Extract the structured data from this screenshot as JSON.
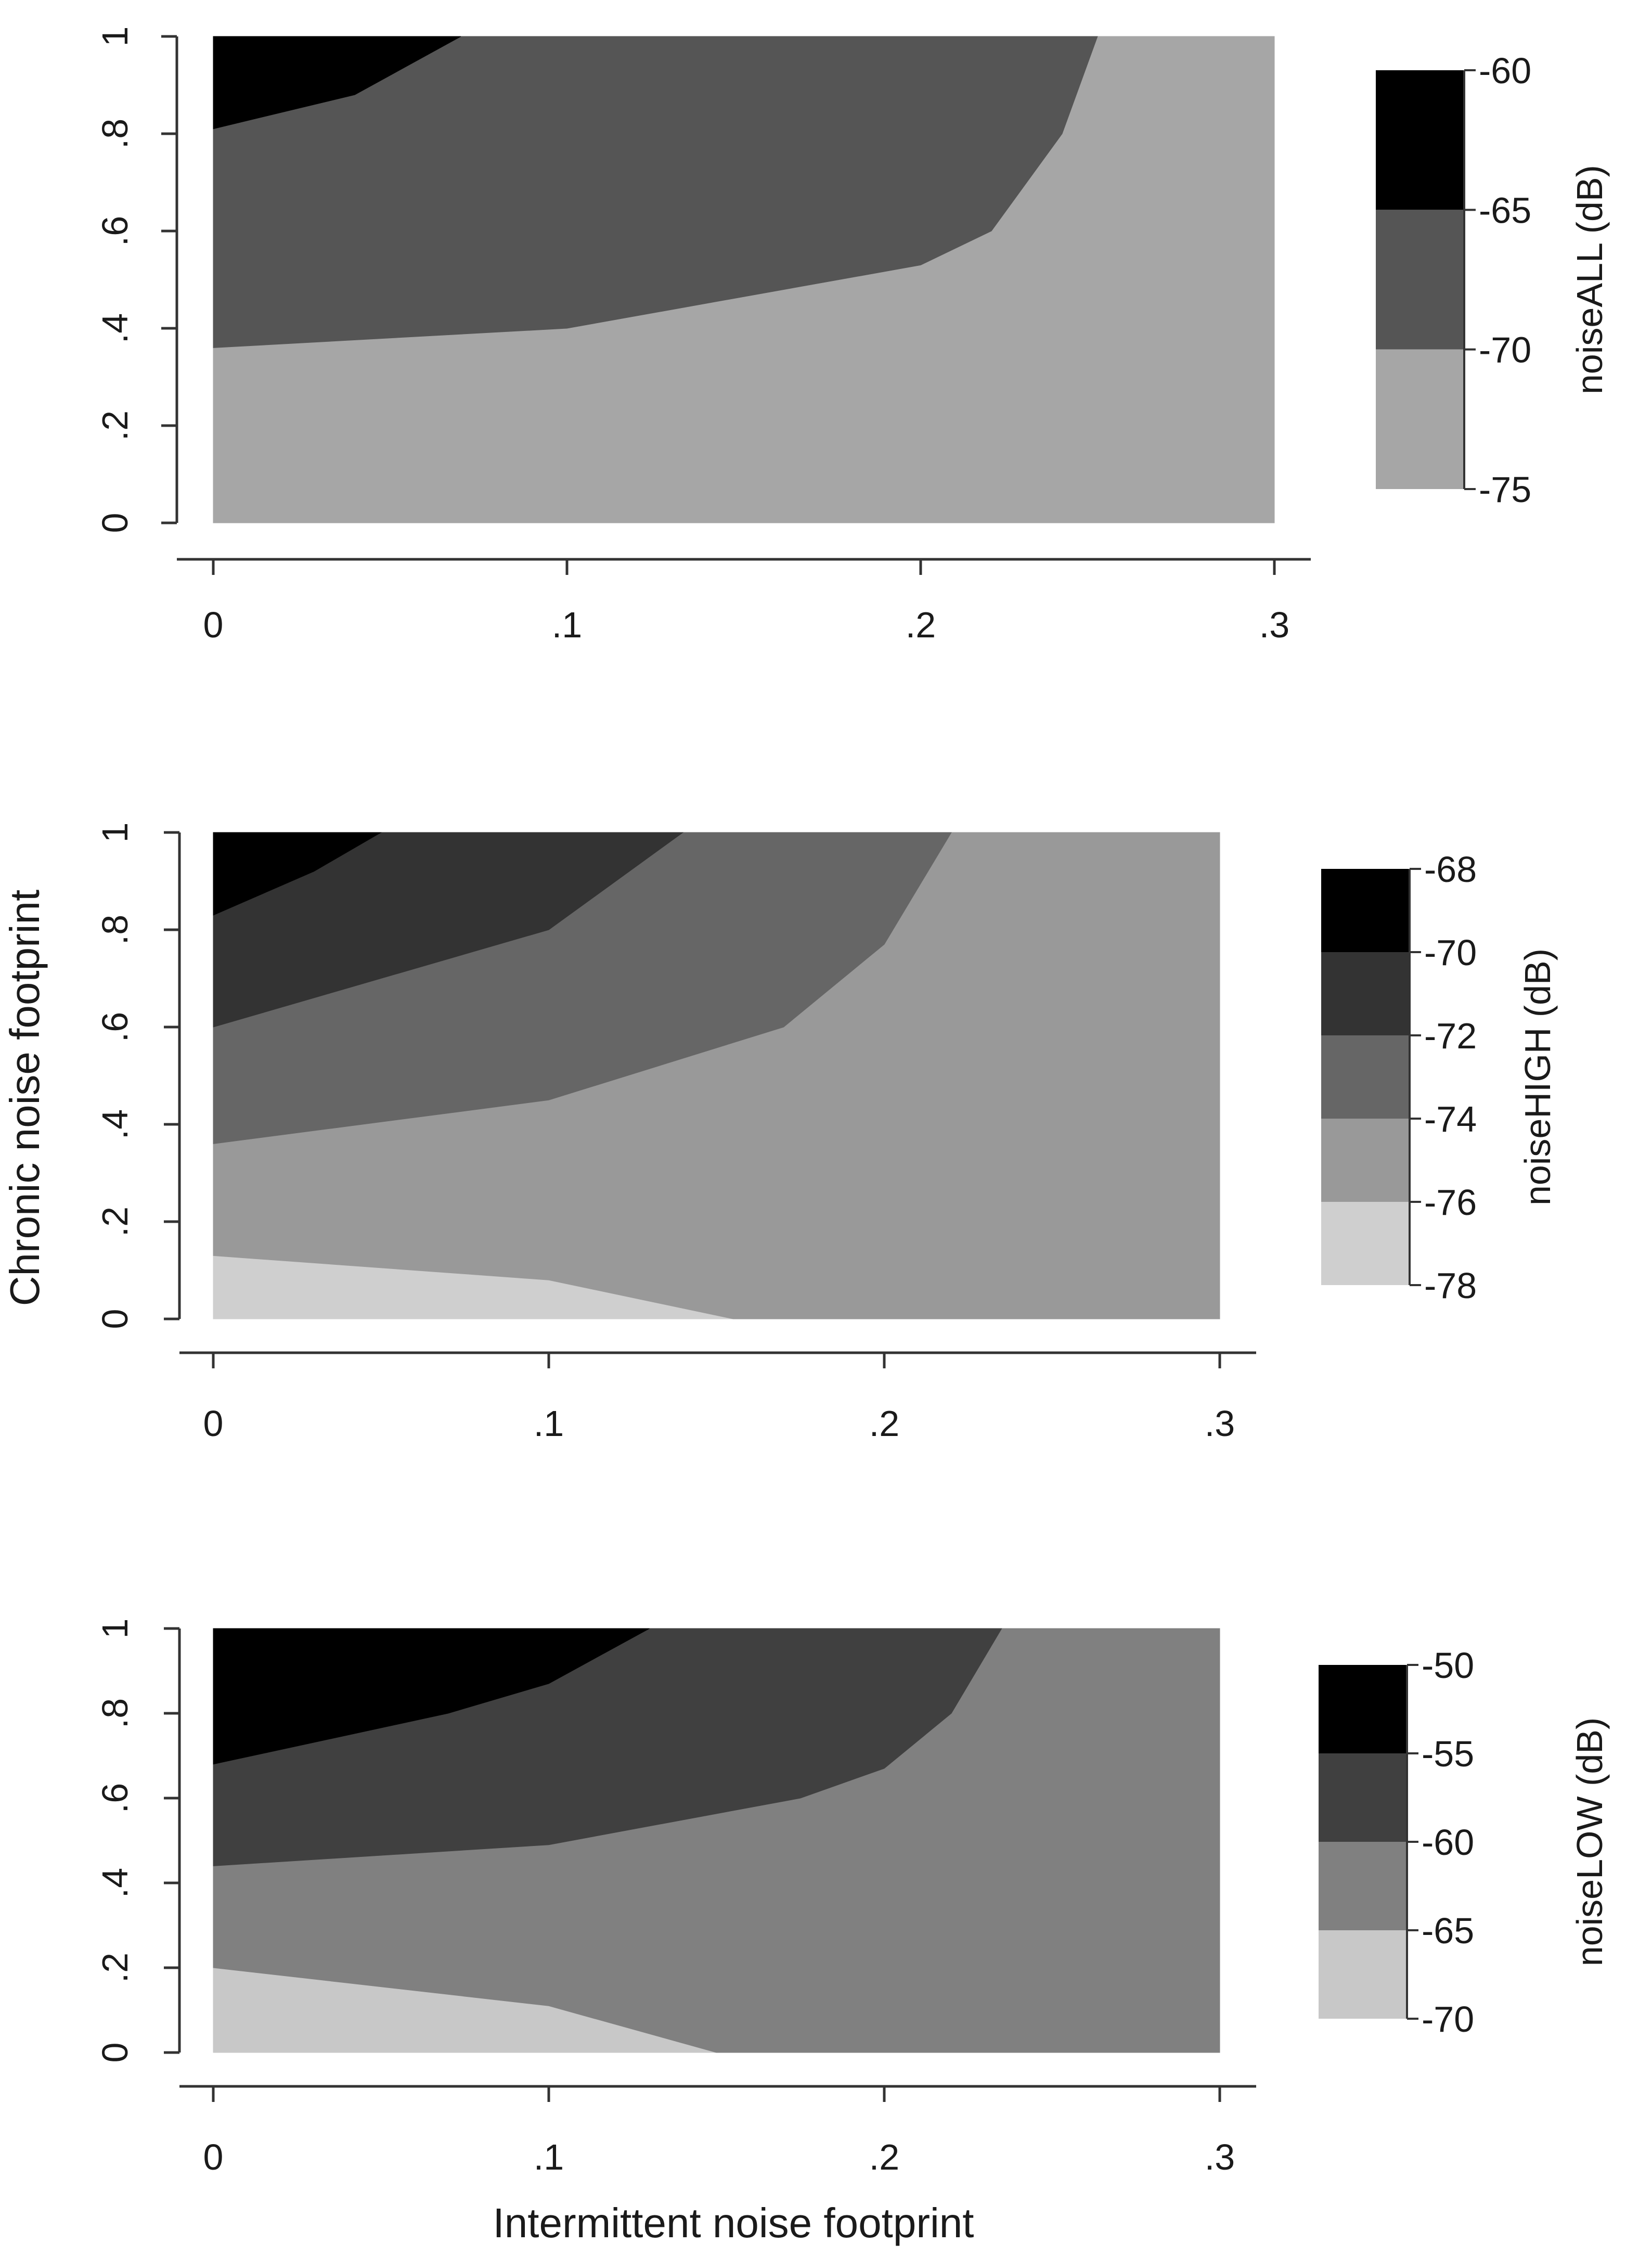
{
  "chart_data": {
    "type": "contour",
    "shared_xlabel": "Intermittent noise footprint",
    "shared_ylabel": "Chronic noise footprint",
    "panels": [
      {
        "id": "all",
        "legend_title": "noiseALL (dB)",
        "xlim": [
          0,
          0.3
        ],
        "ylim": [
          0,
          1
        ],
        "xticks": [
          "0",
          ".1",
          ".2",
          ".3"
        ],
        "yticks": [
          "0",
          ".2",
          ".4",
          ".6",
          ".8",
          "1"
        ],
        "legend_ticks": [
          "-60",
          "-65",
          "-70",
          "-75"
        ],
        "levels": [
          {
            "range": "-75 to -70",
            "color": "#a6a6a6",
            "polygon": [
              [
                0,
                0
              ],
              [
                0.3,
                0
              ],
              [
                0.3,
                1
              ],
              [
                0,
                1
              ]
            ]
          },
          {
            "range": "-70 to -65",
            "color": "#555555",
            "polygon": [
              [
                0,
                0.36
              ],
              [
                0.1,
                0.4
              ],
              [
                0.2,
                0.53
              ],
              [
                0.22,
                0.6
              ],
              [
                0.24,
                0.8
              ],
              [
                0.25,
                1
              ],
              [
                0,
                1
              ]
            ]
          },
          {
            "range": "-65 to -60",
            "color": "#000000",
            "polygon": [
              [
                0,
                0.81
              ],
              [
                0.04,
                0.88
              ],
              [
                0.07,
                1
              ],
              [
                0,
                1
              ]
            ]
          }
        ]
      },
      {
        "id": "high",
        "legend_title": "noiseHIGH (dB)",
        "xlim": [
          0,
          0.3
        ],
        "ylim": [
          0,
          1
        ],
        "xticks": [
          "0",
          ".1",
          ".2",
          ".3"
        ],
        "yticks": [
          "0",
          ".2",
          ".4",
          ".6",
          ".8",
          "1"
        ],
        "legend_ticks": [
          "-68",
          "-70",
          "-72",
          "-74",
          "-76",
          "-78"
        ],
        "levels": [
          {
            "range": "-78 to -76",
            "color": "#cfcfcf",
            "polygon": [
              [
                0,
                0
              ],
              [
                0.3,
                0
              ],
              [
                0.3,
                1
              ],
              [
                0,
                1
              ]
            ]
          },
          {
            "range": "-76 to -74",
            "color": "#999999",
            "polygon": [
              [
                0,
                0.13
              ],
              [
                0.1,
                0.08
              ],
              [
                0.155,
                0
              ],
              [
                0.3,
                0
              ],
              [
                0.3,
                1
              ],
              [
                0,
                1
              ]
            ]
          },
          {
            "range": "-74 to -72",
            "color": "#666666",
            "polygon": [
              [
                0,
                0.36
              ],
              [
                0.1,
                0.45
              ],
              [
                0.17,
                0.6
              ],
              [
                0.2,
                0.77
              ],
              [
                0.22,
                1
              ],
              [
                0,
                1
              ]
            ]
          },
          {
            "range": "-72 to -70",
            "color": "#333333",
            "polygon": [
              [
                0,
                0.6
              ],
              [
                0.1,
                0.8
              ],
              [
                0.14,
                1
              ],
              [
                0,
                1
              ]
            ]
          },
          {
            "range": "-70 to -68",
            "color": "#000000",
            "polygon": [
              [
                0,
                0.83
              ],
              [
                0.03,
                0.92
              ],
              [
                0.05,
                1
              ],
              [
                0,
                1
              ]
            ]
          }
        ]
      },
      {
        "id": "low",
        "legend_title": "noiseLOW (dB)",
        "xlim": [
          0,
          0.3
        ],
        "ylim": [
          0,
          1
        ],
        "xticks": [
          "0",
          ".1",
          ".2",
          ".3"
        ],
        "yticks": [
          "0",
          ".2",
          ".4",
          ".6",
          ".8",
          "1"
        ],
        "legend_ticks": [
          "-50",
          "-55",
          "-60",
          "-65",
          "-70"
        ],
        "levels": [
          {
            "range": "-70 to -65",
            "color": "#c8c8c8",
            "polygon": [
              [
                0,
                0
              ],
              [
                0.3,
                0
              ],
              [
                0.3,
                1
              ],
              [
                0,
                1
              ]
            ]
          },
          {
            "range": "-65 to -60",
            "color": "#808080",
            "polygon": [
              [
                0,
                0.2
              ],
              [
                0.1,
                0.11
              ],
              [
                0.15,
                0
              ],
              [
                0.3,
                0
              ],
              [
                0.3,
                1
              ],
              [
                0,
                1
              ]
            ]
          },
          {
            "range": "-60 to -55",
            "color": "#404040",
            "polygon": [
              [
                0,
                0.44
              ],
              [
                0.1,
                0.49
              ],
              [
                0.175,
                0.6
              ],
              [
                0.2,
                0.67
              ],
              [
                0.22,
                0.8
              ],
              [
                0.235,
                1
              ],
              [
                0,
                1
              ]
            ]
          },
          {
            "range": "-55 to -50",
            "color": "#000000",
            "polygon": [
              [
                0,
                0.68
              ],
              [
                0.07,
                0.8
              ],
              [
                0.1,
                0.87
              ],
              [
                0.13,
                1
              ],
              [
                0,
                1
              ]
            ]
          }
        ]
      }
    ]
  }
}
